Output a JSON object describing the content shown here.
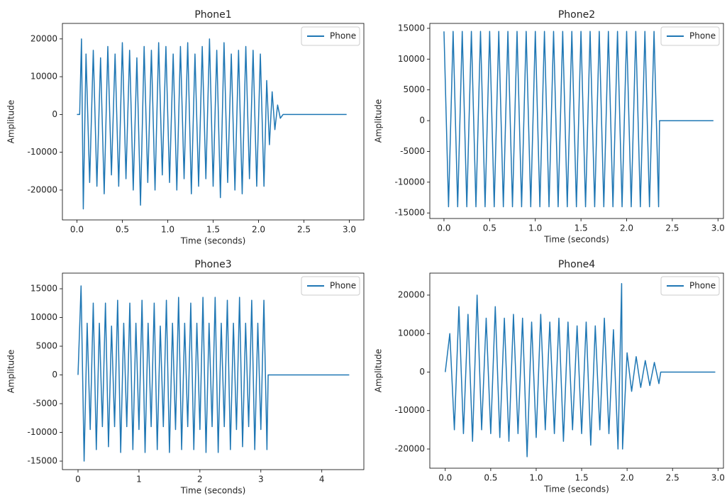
{
  "chart_data": [
    {
      "type": "line",
      "title": "Phone1",
      "xlabel": "Time (seconds)",
      "ylabel": "Amplitude",
      "legend": "upper right",
      "xlim": [
        -0.16,
        3.16
      ],
      "ylim": [
        -27900,
        24100
      ],
      "xticks": [
        {
          "value": 0,
          "label": "0.0"
        },
        0.5,
        {
          "value": 1,
          "label": "1.0"
        },
        1.5,
        {
          "value": 2,
          "label": "2.0"
        },
        2.5,
        {
          "value": 3,
          "label": "3.0"
        }
      ],
      "yticks": [
        -20000,
        -10000,
        0,
        10000,
        20000
      ],
      "x": [
        0,
        0.03,
        0.05,
        0.07,
        0.1,
        0.14,
        0.18,
        0.22,
        0.26,
        0.3,
        0.34,
        0.38,
        0.42,
        0.46,
        0.5,
        0.54,
        0.58,
        0.62,
        0.66,
        0.7,
        0.74,
        0.78,
        0.82,
        0.86,
        0.9,
        0.94,
        0.98,
        1.02,
        1.06,
        1.1,
        1.14,
        1.18,
        1.22,
        1.26,
        1.3,
        1.34,
        1.38,
        1.42,
        1.46,
        1.5,
        1.54,
        1.58,
        1.62,
        1.66,
        1.7,
        1.74,
        1.78,
        1.82,
        1.86,
        1.9,
        1.94,
        1.98,
        2.02,
        2.06,
        2.09,
        2.12,
        2.15,
        2.18,
        2.21,
        2.24,
        2.27,
        2.97
      ],
      "series": [
        {
          "name": "Phone",
          "color": "#1f77b4",
          "values": [
            0,
            0,
            20000,
            -25000,
            16000,
            -18000,
            17000,
            -19000,
            15000,
            -21000,
            18000,
            -16000,
            16000,
            -19000,
            19000,
            -17000,
            17000,
            -20000,
            15000,
            -24000,
            18000,
            -18000,
            17000,
            -20000,
            19000,
            -16000,
            18000,
            -18000,
            16000,
            -20000,
            18000,
            -17000,
            19000,
            -21000,
            16000,
            -19000,
            18000,
            -17000,
            20000,
            -19000,
            17000,
            -22000,
            19000,
            -18000,
            16000,
            -20000,
            17000,
            -21000,
            18000,
            -17000,
            17000,
            -19000,
            16000,
            -19000,
            9000,
            -8000,
            6000,
            -4000,
            2500,
            -1000,
            0,
            0
          ]
        }
      ]
    },
    {
      "type": "line",
      "title": "Phone2",
      "xlabel": "Time (seconds)",
      "ylabel": "Amplitude",
      "legend": "upper right",
      "xlim": [
        -0.155,
        3.06
      ],
      "ylim": [
        -15900,
        15800
      ],
      "xticks": [
        {
          "value": 0,
          "label": "0.0"
        },
        0.5,
        {
          "value": 1,
          "label": "1.0"
        },
        1.5,
        {
          "value": 2,
          "label": "2.0"
        },
        2.5,
        {
          "value": 3,
          "label": "3.0"
        }
      ],
      "yticks": [
        -15000,
        -10000,
        -5000,
        0,
        5000,
        10000,
        15000
      ],
      "x": [
        0,
        0.05,
        0.1,
        0.15,
        0.2,
        0.25,
        0.3,
        0.35,
        0.4,
        0.45,
        0.5,
        0.55,
        0.6,
        0.65,
        0.7,
        0.75,
        0.8,
        0.85,
        0.9,
        0.95,
        1.0,
        1.05,
        1.1,
        1.15,
        1.2,
        1.25,
        1.3,
        1.35,
        1.4,
        1.45,
        1.5,
        1.55,
        1.6,
        1.65,
        1.7,
        1.75,
        1.8,
        1.85,
        1.9,
        1.95,
        2.0,
        2.05,
        2.1,
        2.15,
        2.2,
        2.25,
        2.3,
        2.35,
        2.36,
        2.95
      ],
      "series": [
        {
          "name": "Phone",
          "color": "#1f77b4",
          "values": [
            14500,
            -14000,
            14500,
            -14000,
            14500,
            -14000,
            14500,
            -14000,
            14500,
            -14000,
            14500,
            -14000,
            14500,
            -14000,
            14500,
            -14000,
            14500,
            -14000,
            14500,
            -14000,
            14500,
            -14000,
            14500,
            -14000,
            14500,
            -14000,
            14500,
            -14000,
            14500,
            -14000,
            14500,
            -14000,
            14500,
            -14000,
            14500,
            -14000,
            14500,
            -14000,
            14500,
            -14000,
            14500,
            -14000,
            14500,
            -14000,
            14500,
            -14000,
            14500,
            -14000,
            0,
            0
          ]
        }
      ]
    },
    {
      "type": "line",
      "title": "Phone3",
      "xlabel": "Time (seconds)",
      "ylabel": "Amplitude",
      "legend": "upper right",
      "xlim": [
        -0.256,
        4.69
      ],
      "ylim": [
        -16480,
        17720
      ],
      "xticks": [
        0,
        1,
        2,
        3,
        4
      ],
      "yticks": [
        -15000,
        -10000,
        -5000,
        0,
        5000,
        10000,
        15000
      ],
      "x": [
        0,
        0.05,
        0.1,
        0.15,
        0.2,
        0.25,
        0.3,
        0.35,
        0.4,
        0.45,
        0.5,
        0.55,
        0.6,
        0.65,
        0.7,
        0.75,
        0.8,
        0.85,
        0.9,
        0.95,
        1.0,
        1.05,
        1.1,
        1.15,
        1.2,
        1.25,
        1.3,
        1.35,
        1.4,
        1.45,
        1.5,
        1.55,
        1.6,
        1.65,
        1.7,
        1.75,
        1.8,
        1.85,
        1.9,
        1.95,
        2.0,
        2.05,
        2.1,
        2.15,
        2.2,
        2.25,
        2.3,
        2.35,
        2.4,
        2.45,
        2.5,
        2.55,
        2.6,
        2.65,
        2.7,
        2.75,
        2.8,
        2.85,
        2.9,
        2.95,
        3.0,
        3.05,
        3.1,
        3.12,
        4.45
      ],
      "series": [
        {
          "name": "Phone",
          "color": "#1f77b4",
          "values": [
            0,
            15500,
            -15000,
            9000,
            -9500,
            12500,
            -13000,
            9000,
            -9000,
            12500,
            -12500,
            8500,
            -9000,
            13000,
            -13500,
            9000,
            -9000,
            12500,
            -13000,
            9000,
            -9500,
            13000,
            -13500,
            9000,
            -9000,
            12500,
            -13000,
            8500,
            -9000,
            13000,
            -13500,
            9000,
            -9500,
            13500,
            -13000,
            9000,
            -9000,
            12500,
            -13000,
            9000,
            -9500,
            13500,
            -13500,
            9000,
            -9000,
            13500,
            -13500,
            9000,
            -9000,
            13000,
            -13000,
            9000,
            -9500,
            13500,
            -12500,
            9000,
            -9000,
            13000,
            -13000,
            9000,
            -9500,
            13000,
            -13000,
            0,
            0
          ]
        }
      ]
    },
    {
      "type": "line",
      "title": "Phone4",
      "xlabel": "Time (seconds)",
      "ylabel": "Amplitude",
      "legend": "upper right",
      "xlim": [
        -0.17,
        3.06
      ],
      "ylim": [
        -24980,
        25710
      ],
      "xticks": [
        {
          "value": 0,
          "label": "0.0"
        },
        0.5,
        {
          "value": 1,
          "label": "1.0"
        },
        1.5,
        {
          "value": 2,
          "label": "2.0"
        },
        2.5,
        {
          "value": 3,
          "label": "3.0"
        }
      ],
      "yticks": [
        -20000,
        -10000,
        0,
        10000,
        20000
      ],
      "x": [
        0,
        0.05,
        0.1,
        0.15,
        0.2,
        0.25,
        0.3,
        0.35,
        0.4,
        0.45,
        0.5,
        0.55,
        0.6,
        0.65,
        0.7,
        0.75,
        0.8,
        0.85,
        0.9,
        0.95,
        1.0,
        1.05,
        1.1,
        1.15,
        1.2,
        1.25,
        1.3,
        1.35,
        1.4,
        1.45,
        1.5,
        1.55,
        1.6,
        1.65,
        1.7,
        1.75,
        1.8,
        1.85,
        1.9,
        1.94,
        1.95,
        2.0,
        2.05,
        2.1,
        2.15,
        2.2,
        2.25,
        2.3,
        2.35,
        2.37,
        2.97
      ],
      "series": [
        {
          "name": "Phone",
          "color": "#1f77b4",
          "values": [
            0,
            10000,
            -15000,
            17000,
            -16000,
            15000,
            -18000,
            20000,
            -15000,
            14000,
            -16000,
            17000,
            -17000,
            14000,
            -18000,
            15000,
            -16000,
            14000,
            -22000,
            13000,
            -17000,
            15000,
            -15000,
            13000,
            -16000,
            14000,
            -18000,
            13000,
            -15000,
            12000,
            -16000,
            13000,
            -19000,
            12000,
            -15000,
            14000,
            -16000,
            11000,
            -20000,
            23000,
            -20000,
            5000,
            -5000,
            4000,
            -4000,
            3000,
            -3500,
            2500,
            -3000,
            0,
            0
          ]
        }
      ]
    }
  ]
}
